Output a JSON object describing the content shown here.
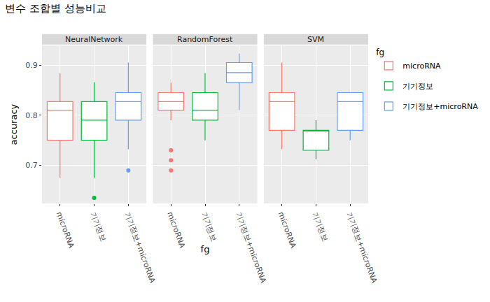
{
  "chart_data": {
    "type": "box",
    "title": "변수 조합별 성능비교",
    "x_label": "fg",
    "y_label": "accuracy",
    "legend_title": "fg",
    "legend": "right",
    "grid": true,
    "ylim": [
      0.624,
      0.939
    ],
    "yticks": [
      0.7,
      0.8,
      0.9
    ],
    "categories": [
      "microRNA",
      "기기정보",
      "기기정보+microRNA"
    ],
    "series": [
      {
        "name": "microRNA",
        "color": "#F8766D"
      },
      {
        "name": "기기정보",
        "color": "#00BA38"
      },
      {
        "name": "기기정보+microRNA",
        "color": "#619CFF"
      }
    ],
    "panels": [
      {
        "name": "NeuralNetwork",
        "boxes": [
          {
            "category": "microRNA",
            "lowerfence": 0.675,
            "q1": 0.75,
            "median": 0.81,
            "q3": 0.827,
            "upperfence": 0.884,
            "outliers": []
          },
          {
            "category": "기기정보",
            "lowerfence": 0.675,
            "q1": 0.75,
            "median": 0.79,
            "q3": 0.827,
            "upperfence": 0.866,
            "outliers": [
              0.635
            ]
          },
          {
            "category": "기기정보+microRNA",
            "lowerfence": 0.732,
            "q1": 0.79,
            "median": 0.827,
            "q3": 0.845,
            "upperfence": 0.905,
            "outliers": [
              0.69
            ]
          }
        ]
      },
      {
        "name": "RandomForest",
        "boxes": [
          {
            "category": "microRNA",
            "lowerfence": 0.79,
            "q1": 0.81,
            "median": 0.827,
            "q3": 0.845,
            "upperfence": 0.865,
            "outliers": [
              0.73,
              0.71,
              0.69
            ]
          },
          {
            "category": "기기정보",
            "lowerfence": 0.75,
            "q1": 0.79,
            "median": 0.81,
            "q3": 0.845,
            "upperfence": 0.884,
            "outliers": []
          },
          {
            "category": "기기정보+microRNA",
            "lowerfence": 0.81,
            "q1": 0.865,
            "median": 0.885,
            "q3": 0.905,
            "upperfence": 0.923,
            "outliers": []
          }
        ]
      },
      {
        "name": "SVM",
        "boxes": [
          {
            "category": "microRNA",
            "lowerfence": 0.732,
            "q1": 0.77,
            "median": 0.827,
            "q3": 0.845,
            "upperfence": 0.905,
            "outliers": []
          },
          {
            "category": "기기정보",
            "lowerfence": 0.712,
            "q1": 0.73,
            "median": 0.77,
            "q3": 0.77,
            "upperfence": 0.79,
            "outliers": []
          },
          {
            "category": "기기정보+microRNA",
            "lowerfence": 0.75,
            "q1": 0.77,
            "median": 0.827,
            "q3": 0.845,
            "upperfence": 0.845,
            "outliers": []
          }
        ]
      }
    ]
  }
}
